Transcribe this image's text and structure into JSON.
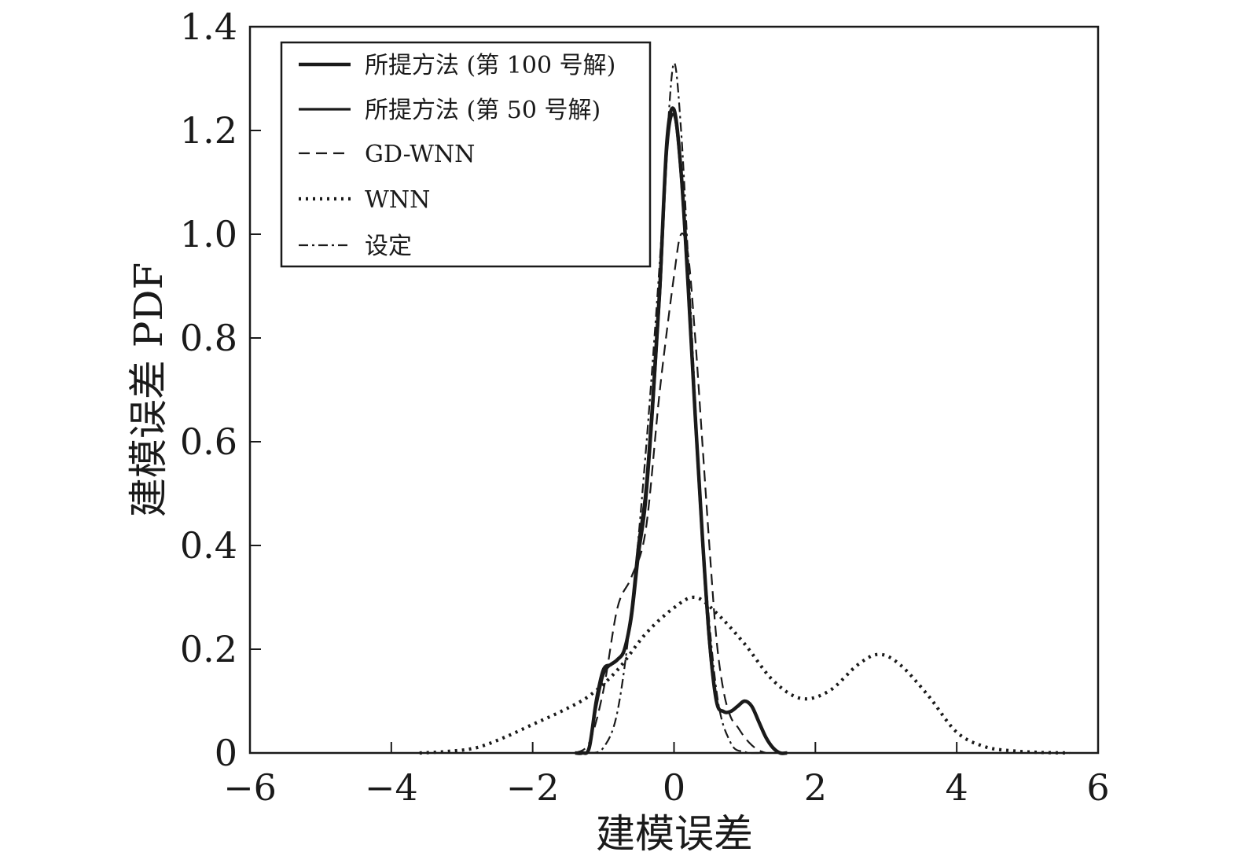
{
  "chart_data": {
    "type": "line",
    "xlabel": "建模误差",
    "ylabel": "建模误差 PDF",
    "xlim": [
      -6,
      6
    ],
    "ylim": [
      0,
      1.4
    ],
    "xticks": [
      -6,
      -4,
      -2,
      0,
      2,
      4,
      6
    ],
    "xtick_labels": [
      "−6",
      "−4",
      "−2",
      "0",
      "2",
      "4",
      "6"
    ],
    "yticks": [
      0,
      0.2,
      0.4,
      0.6,
      0.8,
      1.0,
      1.2,
      1.4
    ],
    "ytick_labels": [
      "0",
      "0.2",
      "0.4",
      "0.6",
      "0.8",
      "1.0",
      "1.2",
      "1.4"
    ],
    "grid": false,
    "legend_position": "top-left",
    "series": [
      {
        "name": "所提方法 (第 100 号解)",
        "style": "solid-bold",
        "color": "#1a1a1a",
        "x": [
          -1.4,
          -1.3,
          -1.2,
          -1.1,
          -1.0,
          -0.9,
          -0.8,
          -0.7,
          -0.6,
          -0.5,
          -0.4,
          -0.3,
          -0.2,
          -0.1,
          0.0,
          0.1,
          0.2,
          0.3,
          0.4,
          0.5,
          0.6,
          0.7,
          0.8,
          0.9,
          1.0,
          1.1,
          1.2,
          1.3,
          1.4,
          1.5,
          1.6
        ],
        "y": [
          0,
          0,
          0.01,
          0.1,
          0.16,
          0.17,
          0.18,
          0.2,
          0.27,
          0.4,
          0.5,
          0.68,
          0.9,
          1.18,
          1.24,
          1.12,
          0.9,
          0.65,
          0.42,
          0.22,
          0.1,
          0.08,
          0.08,
          0.09,
          0.1,
          0.09,
          0.06,
          0.03,
          0.01,
          0,
          0
        ]
      },
      {
        "name": "所提方法 (第 50 号解)",
        "style": "solid",
        "color": "#1a1a1a",
        "x": [
          -1.4,
          -1.3,
          -1.2,
          -1.1,
          -1.0,
          -0.9,
          -0.8,
          -0.7,
          -0.6,
          -0.5,
          -0.4,
          -0.3,
          -0.2,
          -0.1,
          0.0,
          0.1,
          0.2,
          0.3,
          0.4,
          0.5,
          0.6,
          0.7,
          0.8,
          0.9,
          1.0,
          1.1,
          1.2,
          1.3,
          1.4,
          1.5,
          1.6
        ],
        "y": [
          0,
          0,
          0.01,
          0.09,
          0.15,
          0.17,
          0.18,
          0.2,
          0.26,
          0.38,
          0.48,
          0.66,
          0.88,
          1.16,
          1.23,
          1.11,
          0.89,
          0.64,
          0.41,
          0.21,
          0.1,
          0.08,
          0.08,
          0.09,
          0.1,
          0.09,
          0.06,
          0.03,
          0.01,
          0,
          0
        ]
      },
      {
        "name": "GD-WNN",
        "style": "dashed",
        "color": "#1a1a1a",
        "x": [
          -1.4,
          -1.2,
          -1.0,
          -0.8,
          -0.6,
          -0.4,
          -0.2,
          0.0,
          0.1,
          0.2,
          0.3,
          0.4,
          0.5,
          0.6,
          0.7,
          0.8,
          0.9,
          1.0,
          1.1,
          1.2,
          1.3
        ],
        "y": [
          0,
          0.02,
          0.12,
          0.28,
          0.34,
          0.43,
          0.7,
          0.92,
          1.0,
          0.96,
          0.8,
          0.6,
          0.4,
          0.22,
          0.12,
          0.07,
          0.05,
          0.03,
          0.015,
          0.005,
          0
        ]
      },
      {
        "name": "WNN",
        "style": "dotted",
        "color": "#1a1a1a",
        "x": [
          -3.6,
          -3.2,
          -2.8,
          -2.4,
          -2.0,
          -1.6,
          -1.2,
          -0.8,
          -0.4,
          0.0,
          0.3,
          0.6,
          1.0,
          1.4,
          1.8,
          2.2,
          2.6,
          2.9,
          3.2,
          3.6,
          4.0,
          4.4,
          4.8,
          5.2,
          5.6
        ],
        "y": [
          0,
          0.003,
          0.01,
          0.03,
          0.055,
          0.08,
          0.11,
          0.16,
          0.23,
          0.28,
          0.3,
          0.27,
          0.21,
          0.14,
          0.105,
          0.12,
          0.17,
          0.19,
          0.17,
          0.11,
          0.04,
          0.012,
          0.004,
          0.001,
          0
        ]
      },
      {
        "name": "设定",
        "style": "dashdot",
        "color": "#1a1a1a",
        "x": [
          -1.2,
          -1.0,
          -0.8,
          -0.6,
          -0.4,
          -0.2,
          -0.1,
          0.0,
          0.1,
          0.2,
          0.3,
          0.4,
          0.6,
          0.8,
          1.0,
          1.2
        ],
        "y": [
          0,
          0.01,
          0.08,
          0.28,
          0.58,
          0.95,
          1.18,
          1.33,
          1.2,
          0.95,
          0.68,
          0.42,
          0.12,
          0.02,
          0.002,
          0
        ]
      }
    ]
  }
}
